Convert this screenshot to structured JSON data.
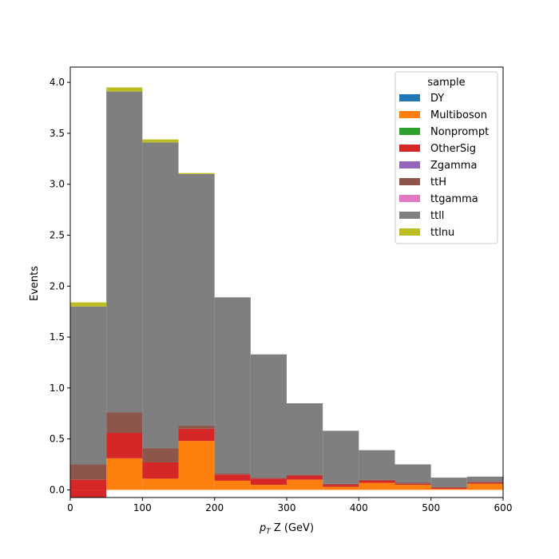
{
  "chart_data": {
    "type": "bar",
    "stacked": true,
    "xlabel_prefix": "p",
    "xlabel_sub": "T",
    "xlabel_rest": " Z (GeV)",
    "ylabel": "Events",
    "xlim": [
      0,
      600
    ],
    "ylim": [
      -0.075,
      4.15
    ],
    "xticks": [
      0,
      100,
      200,
      300,
      400,
      500,
      600
    ],
    "yticks": [
      0.0,
      0.5,
      1.0,
      1.5,
      2.0,
      2.5,
      3.0,
      3.5,
      4.0
    ],
    "grid": false,
    "legend_title": "sample",
    "legend_position": "top-right",
    "bin_edges": [
      0,
      50,
      100,
      150,
      200,
      250,
      300,
      350,
      400,
      450,
      500,
      550,
      600
    ],
    "series": [
      {
        "name": "DY",
        "color": "#1f77b4",
        "values": [
          0,
          0,
          0,
          0,
          0,
          0,
          0,
          0,
          0,
          0,
          0,
          0
        ]
      },
      {
        "name": "Multiboson",
        "color": "#ff7f0e",
        "values": [
          0,
          0.31,
          0.11,
          0.48,
          0.09,
          0.05,
          0.1,
          0.03,
          0.07,
          0.05,
          0.01,
          0.06
        ]
      },
      {
        "name": "Nonprompt",
        "color": "#2ca02c",
        "values": [
          0,
          0,
          0,
          0,
          0,
          0,
          0,
          0,
          0,
          0,
          0,
          0
        ]
      },
      {
        "name": "OtherSig",
        "color": "#d62728",
        "values": [
          0.1,
          0.25,
          0.16,
          0.12,
          0.06,
          0.06,
          0.04,
          0.02,
          0.02,
          0.01,
          0.01,
          0.01
        ]
      },
      {
        "name": "Zgamma",
        "color": "#9467bd",
        "values": [
          0,
          0,
          0,
          0,
          0,
          0,
          0,
          0,
          0,
          0,
          0,
          0
        ]
      },
      {
        "name": "ttH",
        "color": "#8c564b",
        "values": [
          0.15,
          0.2,
          0.14,
          0.03,
          0.01,
          0.01,
          0.01,
          0.01,
          0.01,
          0.01,
          0.01,
          0.01
        ]
      },
      {
        "name": "ttgamma",
        "color": "#e377c2",
        "values": [
          0,
          0,
          0,
          0,
          0,
          0,
          0,
          0,
          0,
          0,
          0,
          0
        ]
      },
      {
        "name": "ttll",
        "color": "#7f7f7f",
        "values": [
          1.55,
          3.15,
          3.0,
          2.47,
          1.73,
          1.21,
          0.7,
          0.52,
          0.29,
          0.18,
          0.09,
          0.05
        ]
      },
      {
        "name": "ttlnu",
        "color": "#bcbd22",
        "values": [
          0.04,
          0.04,
          0.03,
          0.01,
          0,
          0,
          0,
          0,
          0,
          0,
          0,
          0
        ]
      }
    ],
    "negative_overlay": [
      {
        "name": "OtherSig",
        "color": "#d62728",
        "x0": 0,
        "x1": 50,
        "y": -0.075
      }
    ]
  }
}
